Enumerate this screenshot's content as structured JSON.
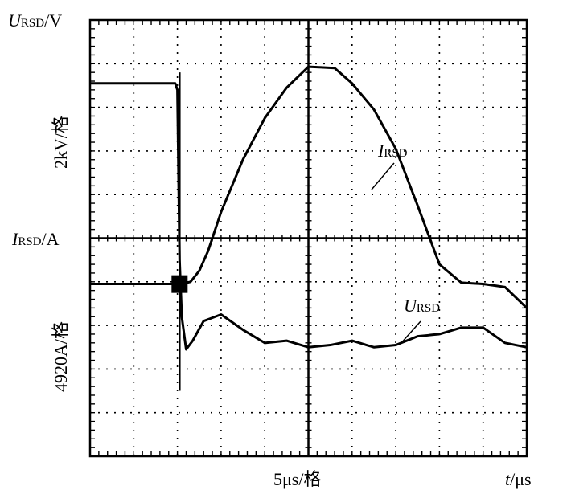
{
  "chart_data": {
    "type": "line",
    "annotations": {
      "y_top_label": {
        "symbol": "U",
        "subscript": "RSD",
        "unit": "/V"
      },
      "y_top_scale": "2kV/格",
      "y_mid_label": {
        "symbol": "I",
        "subscript": "RSD",
        "unit": "/A"
      },
      "y_bottom_scale": "4920A/格",
      "x_scale": "5μs/格",
      "x_label": {
        "symbol": "t",
        "unit": "/μs"
      }
    },
    "grid": true,
    "grid_divisions": {
      "x": 10,
      "y": 10
    },
    "series": [
      {
        "name": "I_RSD",
        "label_symbol": "I",
        "label_subscript": "RSD",
        "x": [
          0,
          2.0,
          2.1,
          2.3,
          2.5,
          2.7,
          3.0,
          3.5,
          4.0,
          4.5,
          5.0,
          5.6,
          6.0,
          6.5,
          7.0,
          7.5,
          8.0,
          8.5,
          9.0,
          9.5,
          10.0
        ],
        "y": [
          -1.05,
          -1.05,
          -1.05,
          -1.0,
          -0.75,
          -0.3,
          0.6,
          1.8,
          2.75,
          3.45,
          3.93,
          3.9,
          3.55,
          2.95,
          2.05,
          0.75,
          -0.6,
          -1.02,
          -1.05,
          -1.12,
          -1.6
        ]
      },
      {
        "name": "U_RSD",
        "label_symbol": "U",
        "label_subscript": "RSD",
        "x": [
          0,
          1.95,
          2.0,
          2.05,
          2.1,
          2.2,
          2.35,
          2.6,
          3.0,
          3.5,
          4.0,
          4.5,
          5.0,
          5.5,
          6.0,
          6.5,
          7.0,
          7.5,
          8.0,
          8.5,
          9.0,
          9.5,
          10.0
        ],
        "y": [
          3.55,
          3.55,
          3.4,
          -0.5,
          -1.8,
          -2.55,
          -2.35,
          -1.9,
          -1.75,
          -2.1,
          -2.4,
          -2.35,
          -2.5,
          -2.45,
          -2.35,
          -2.5,
          -2.45,
          -2.25,
          -2.2,
          -2.05,
          -2.05,
          -2.4,
          -2.5
        ]
      }
    ],
    "xlim": [
      0,
      10
    ],
    "ylim": [
      -5,
      5
    ]
  }
}
